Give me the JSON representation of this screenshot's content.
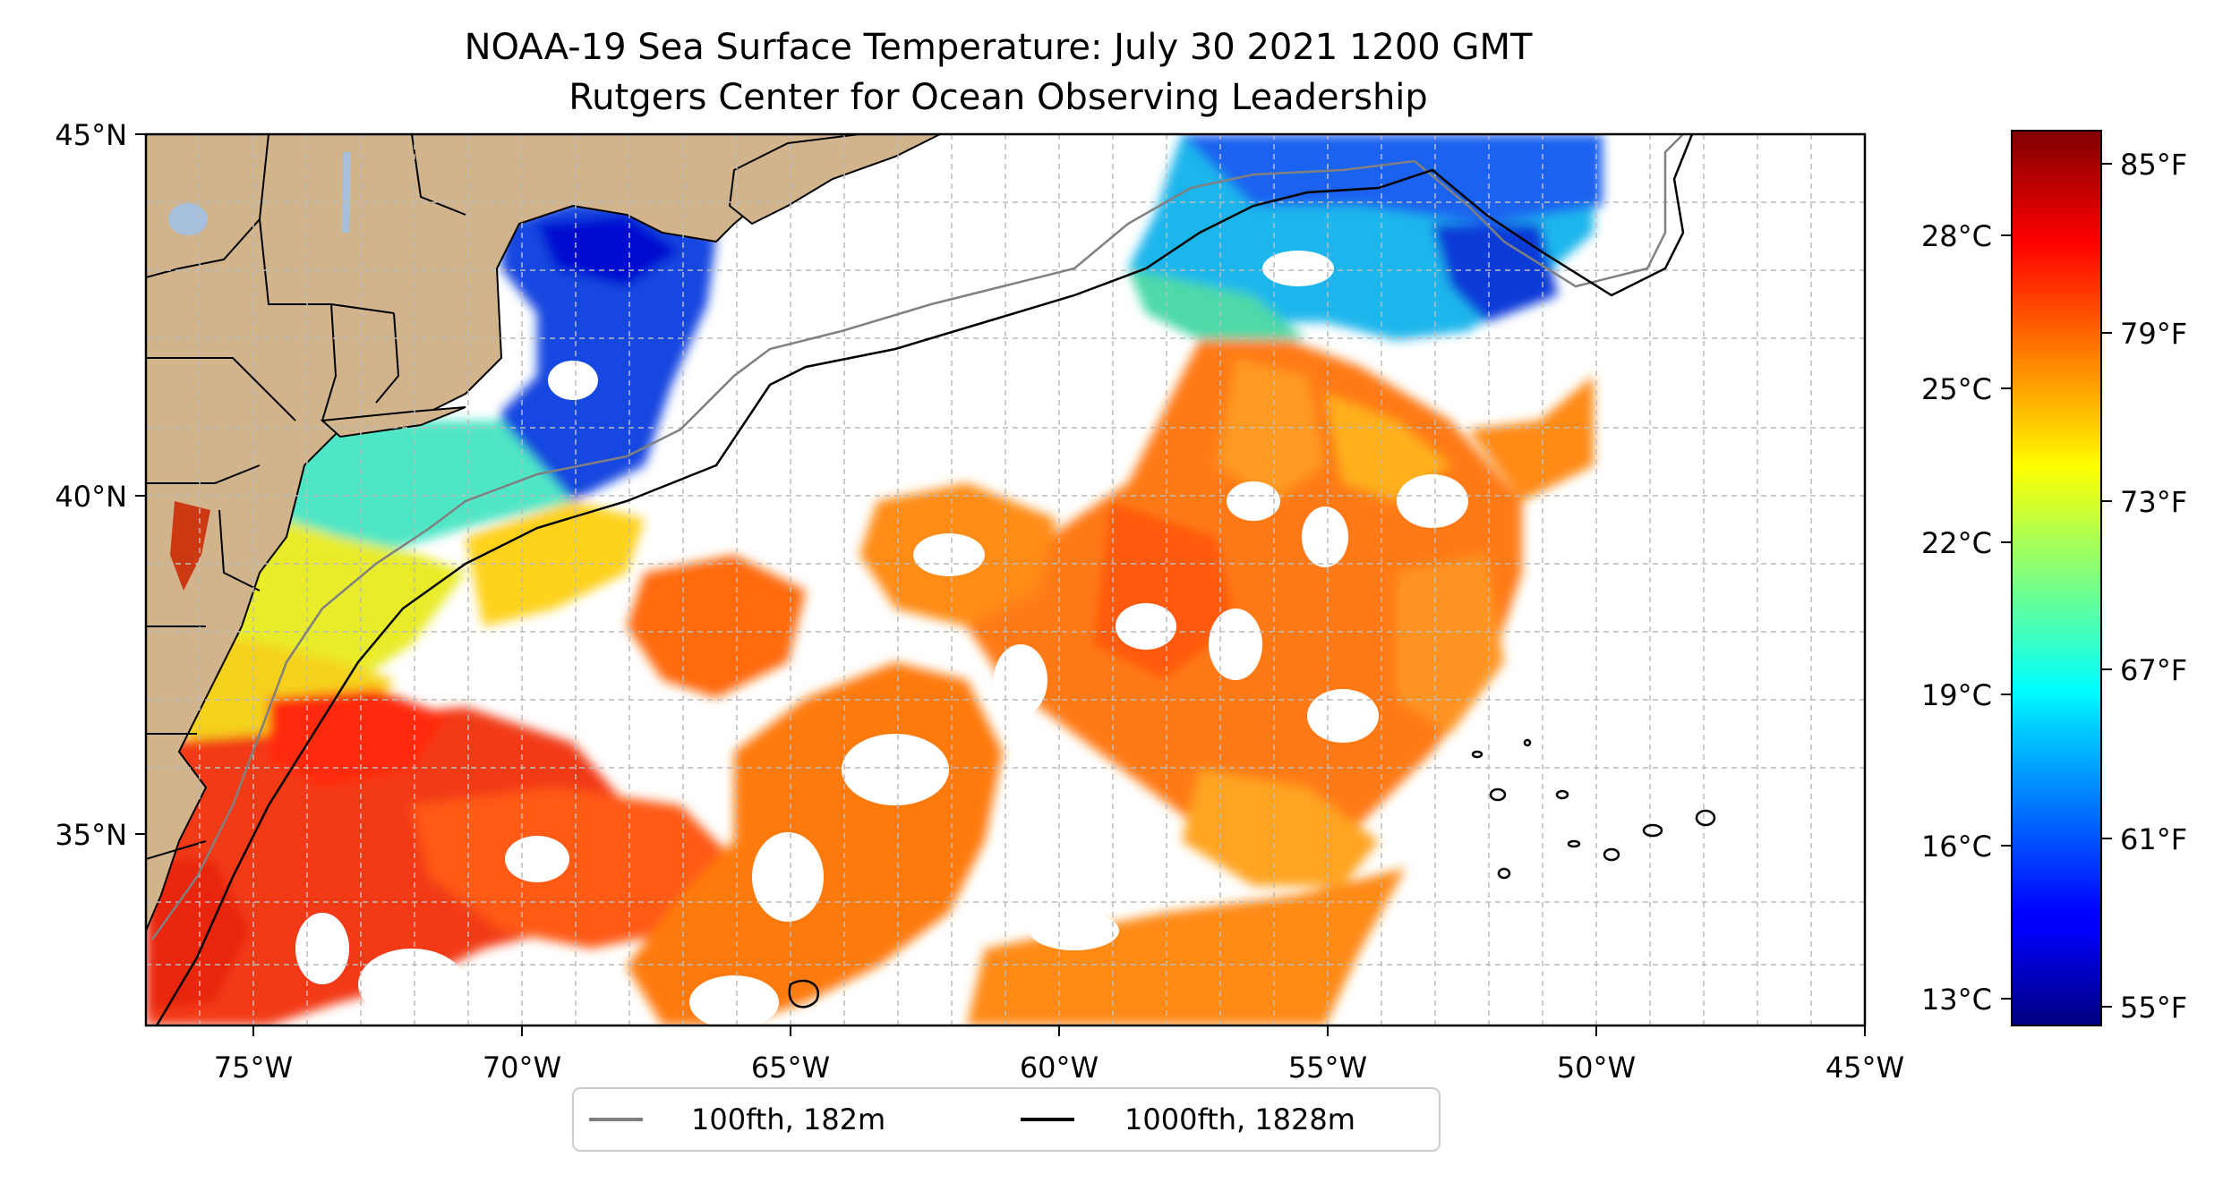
{
  "title": {
    "line1": "NOAA-19 Sea Surface Temperature: July 30 2021 1200 GMT",
    "line2": "Rutgers Center for Ocean Observing Leadership"
  },
  "map": {
    "lon_range": [
      -77,
      -45
    ],
    "lat_range": [
      32.5,
      45
    ],
    "lon_ticks": [
      {
        "value": -75,
        "label": "75°W"
      },
      {
        "value": -70,
        "label": "70°W"
      },
      {
        "value": -65,
        "label": "65°W"
      },
      {
        "value": -60,
        "label": "60°W"
      },
      {
        "value": -55,
        "label": "55°W"
      },
      {
        "value": -50,
        "label": "50°W"
      },
      {
        "value": -45,
        "label": "45°W"
      }
    ],
    "lat_ticks": [
      {
        "value": 35,
        "label": "35°N"
      },
      {
        "value": 40,
        "label": "40°N"
      },
      {
        "value": 45,
        "label": "45°N"
      }
    ],
    "grid": true,
    "land_color": "#d2b48c",
    "lake_color": "#a5bfdd"
  },
  "colorbar": {
    "colormap": "jet",
    "celsius_ticks": [
      {
        "value": 13,
        "label": "13°C"
      },
      {
        "value": 16,
        "label": "16°C"
      },
      {
        "value": 19,
        "label": "19°C"
      },
      {
        "value": 22,
        "label": "22°C"
      },
      {
        "value": 25,
        "label": "25°C"
      },
      {
        "value": 28,
        "label": "28°C"
      }
    ],
    "fahrenheit_ticks": [
      {
        "value": 55,
        "label": "55°F"
      },
      {
        "value": 61,
        "label": "61°F"
      },
      {
        "value": 67,
        "label": "67°F"
      },
      {
        "value": 73,
        "label": "73°F"
      },
      {
        "value": 79,
        "label": "79°F"
      },
      {
        "value": 85,
        "label": "85°F"
      }
    ],
    "range_f": [
      54.4,
      86.2
    ]
  },
  "legend": {
    "entries": [
      {
        "label": "100fth, 182m",
        "color": "#808080"
      },
      {
        "label": "1000fth, 1828m",
        "color": "#000000"
      }
    ]
  }
}
